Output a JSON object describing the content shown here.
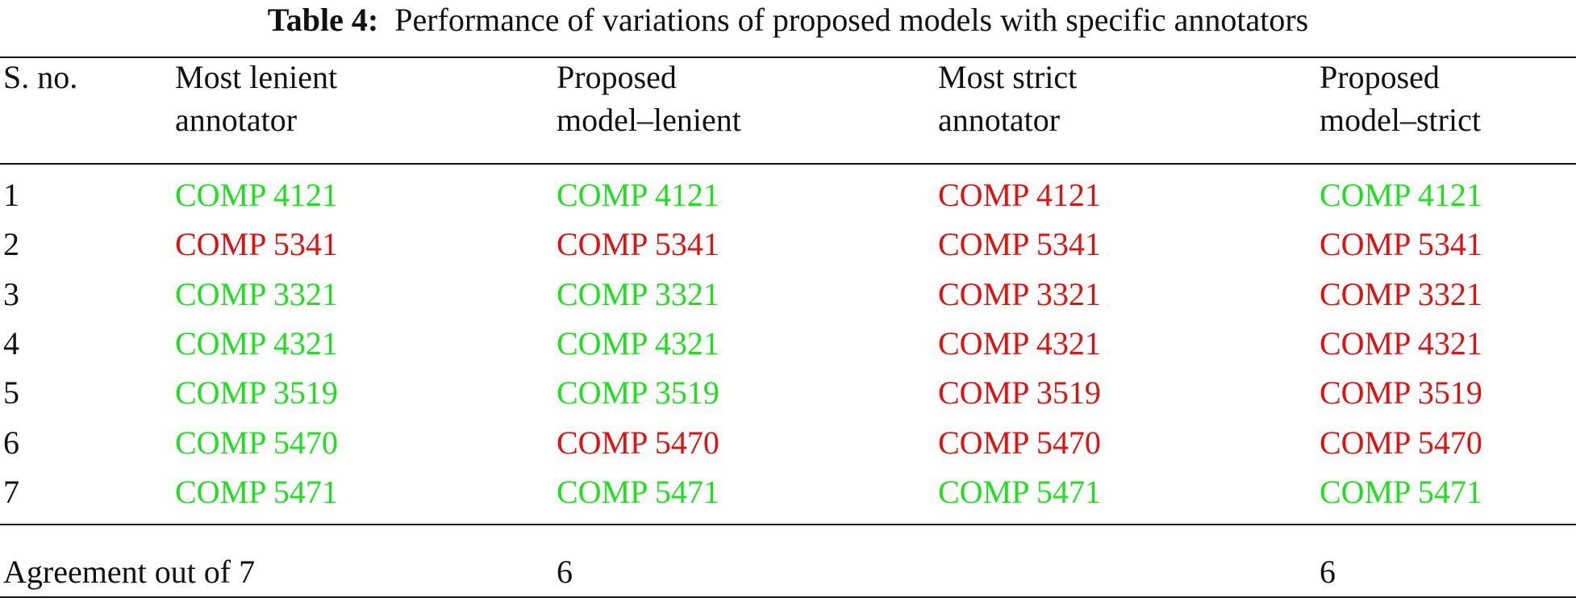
{
  "table": {
    "caption_label": "Table 4:",
    "caption_text": "Performance of variations of proposed models with specific annotators",
    "colors": {
      "green": "#1ee01e",
      "red": "#e01111"
    },
    "headers": [
      [
        "S. no."
      ],
      [
        "Most lenient",
        "annotator"
      ],
      [
        "Proposed",
        "model–lenient"
      ],
      [
        "Most strict",
        "annotator"
      ],
      [
        "Proposed",
        "model–strict"
      ]
    ],
    "rows": [
      {
        "sno": "1",
        "cells": [
          {
            "text": "COMP 4121",
            "color": "green"
          },
          {
            "text": "COMP 4121",
            "color": "green"
          },
          {
            "text": "COMP 4121",
            "color": "red"
          },
          {
            "text": "COMP 4121",
            "color": "green"
          }
        ]
      },
      {
        "sno": "2",
        "cells": [
          {
            "text": "COMP 5341",
            "color": "red"
          },
          {
            "text": "COMP 5341",
            "color": "red"
          },
          {
            "text": "COMP 5341",
            "color": "red"
          },
          {
            "text": "COMP 5341",
            "color": "red"
          }
        ]
      },
      {
        "sno": "3",
        "cells": [
          {
            "text": "COMP 3321",
            "color": "green"
          },
          {
            "text": "COMP 3321",
            "color": "green"
          },
          {
            "text": "COMP 3321",
            "color": "red"
          },
          {
            "text": "COMP 3321",
            "color": "red"
          }
        ]
      },
      {
        "sno": "4",
        "cells": [
          {
            "text": "COMP 4321",
            "color": "green"
          },
          {
            "text": "COMP 4321",
            "color": "green"
          },
          {
            "text": "COMP 4321",
            "color": "red"
          },
          {
            "text": "COMP 4321",
            "color": "red"
          }
        ]
      },
      {
        "sno": "5",
        "cells": [
          {
            "text": "COMP 3519",
            "color": "green"
          },
          {
            "text": "COMP 3519",
            "color": "green"
          },
          {
            "text": "COMP 3519",
            "color": "red"
          },
          {
            "text": "COMP 3519",
            "color": "red"
          }
        ]
      },
      {
        "sno": "6",
        "cells": [
          {
            "text": "COMP 5470",
            "color": "green"
          },
          {
            "text": "COMP 5470",
            "color": "red"
          },
          {
            "text": "COMP 5470",
            "color": "red"
          },
          {
            "text": "COMP 5470",
            "color": "red"
          }
        ]
      },
      {
        "sno": "7",
        "cells": [
          {
            "text": "COMP 5471",
            "color": "green"
          },
          {
            "text": "COMP 5471",
            "color": "green"
          },
          {
            "text": "COMP 5471",
            "color": "green"
          },
          {
            "text": "COMP 5471",
            "color": "green"
          }
        ]
      }
    ],
    "footer": {
      "label": "Agreement out of 7",
      "lenient": "6",
      "strict": "6"
    }
  }
}
